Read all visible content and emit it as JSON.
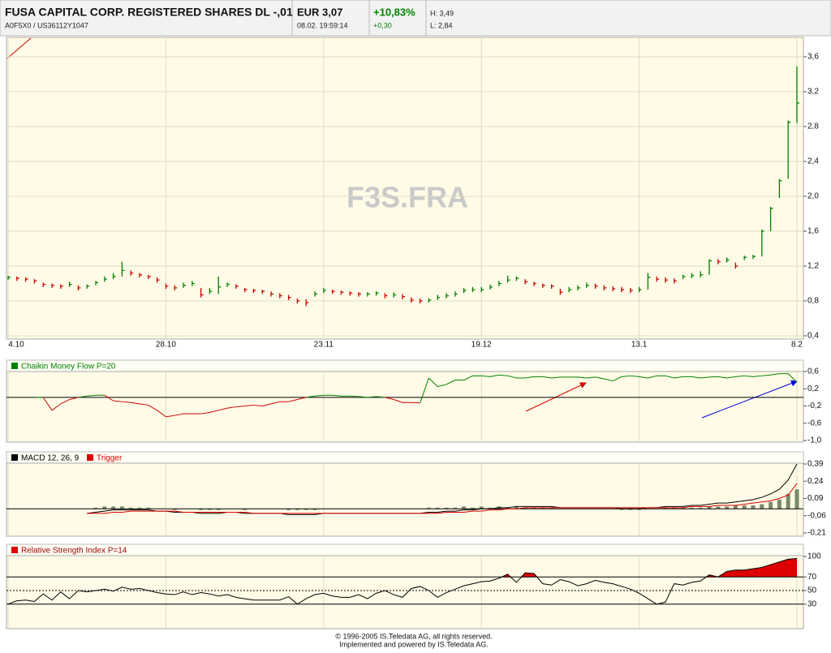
{
  "header": {
    "title": "FUSA CAPITAL CORP. REGISTERED SHARES DL -,01",
    "codes": "A0F5X0  /  US36112Y1047",
    "price": "EUR 3,07",
    "time": "08.02. 19:59:14",
    "change_pct": "+10,83%",
    "change_abs": "+0,30",
    "high": "H: 3,49",
    "low": "L: 2,84"
  },
  "watermark": "F3S.FRA",
  "footer": [
    "© 1996-2005 IS.Teledata AG, all rights reserved.",
    "Implemented and powered by IS.Teledata AG."
  ],
  "chart_data": [
    {
      "type": "hlc",
      "categories": [
        "4.10",
        null,
        null,
        null,
        null,
        null,
        null,
        null,
        null,
        null,
        null,
        null,
        null,
        null,
        null,
        null,
        null,
        null,
        "28.10",
        null,
        null,
        null,
        null,
        null,
        null,
        null,
        null,
        null,
        null,
        null,
        null,
        null,
        null,
        null,
        null,
        null,
        "23.11",
        null,
        null,
        null,
        null,
        null,
        null,
        null,
        null,
        null,
        null,
        null,
        null,
        null,
        null,
        null,
        null,
        null,
        "19.12",
        null,
        null,
        null,
        null,
        null,
        null,
        null,
        null,
        null,
        null,
        null,
        null,
        null,
        null,
        null,
        null,
        null,
        "13.1",
        null,
        null,
        null,
        null,
        null,
        null,
        null,
        null,
        null,
        null,
        null,
        null,
        null,
        null,
        null,
        null,
        null,
        "8.2"
      ],
      "high": [
        1.09,
        1.08,
        1.07,
        1.05,
        1.01,
        1.0,
        0.99,
        1.02,
        0.98,
        0.99,
        1.03,
        1.08,
        1.12,
        1.25,
        1.15,
        1.12,
        1.1,
        1.07,
        1.0,
        0.98,
        1.01,
        1.03,
        0.95,
        0.95,
        1.08,
        1.01,
        0.99,
        0.95,
        0.94,
        0.93,
        0.91,
        0.89,
        0.87,
        0.83,
        0.82,
        0.91,
        0.95,
        0.93,
        0.92,
        0.91,
        0.9,
        0.9,
        0.91,
        0.89,
        0.9,
        0.88,
        0.84,
        0.83,
        0.83,
        0.87,
        0.89,
        0.91,
        0.95,
        0.96,
        0.96,
        0.99,
        1.03,
        1.09,
        1.08,
        1.05,
        1.02,
        1.0,
        0.99,
        0.94,
        0.96,
        0.98,
        1.01,
        1.0,
        0.98,
        0.97,
        0.96,
        0.95,
        0.96,
        1.12,
        1.08,
        1.07,
        1.06,
        1.1,
        1.12,
        1.14,
        1.28,
        1.28,
        1.3,
        1.24,
        1.32,
        1.33,
        1.62,
        1.88,
        2.2,
        2.87,
        3.49
      ],
      "low": [
        1.04,
        1.03,
        1.02,
        1.0,
        0.96,
        0.95,
        0.94,
        0.96,
        0.92,
        0.94,
        0.98,
        1.02,
        1.05,
        1.08,
        1.09,
        1.07,
        1.05,
        1.01,
        0.94,
        0.92,
        0.95,
        0.97,
        0.84,
        0.88,
        0.88,
        0.96,
        0.94,
        0.9,
        0.89,
        0.88,
        0.85,
        0.83,
        0.81,
        0.77,
        0.74,
        0.85,
        0.89,
        0.88,
        0.87,
        0.86,
        0.85,
        0.85,
        0.86,
        0.83,
        0.84,
        0.82,
        0.78,
        0.77,
        0.78,
        0.81,
        0.83,
        0.85,
        0.89,
        0.9,
        0.9,
        0.93,
        0.97,
        1.01,
        1.03,
        0.99,
        0.97,
        0.95,
        0.94,
        0.87,
        0.9,
        0.92,
        0.95,
        0.94,
        0.92,
        0.91,
        0.9,
        0.89,
        0.9,
        0.93,
        1.02,
        1.01,
        1.0,
        1.05,
        1.06,
        1.07,
        1.1,
        1.22,
        1.24,
        1.17,
        1.27,
        1.28,
        1.31,
        1.6,
        1.98,
        2.2,
        2.84
      ],
      "close": [
        1.07,
        1.06,
        1.05,
        1.03,
        0.99,
        0.98,
        0.97,
        0.99,
        0.95,
        0.97,
        1.01,
        1.05,
        1.08,
        1.15,
        1.12,
        1.1,
        1.08,
        1.04,
        0.97,
        0.95,
        0.98,
        1.0,
        0.87,
        0.91,
        0.96,
        0.99,
        0.97,
        0.93,
        0.92,
        0.91,
        0.88,
        0.86,
        0.84,
        0.8,
        0.78,
        0.88,
        0.92,
        0.91,
        0.9,
        0.89,
        0.88,
        0.88,
        0.89,
        0.86,
        0.87,
        0.85,
        0.81,
        0.8,
        0.81,
        0.84,
        0.86,
        0.88,
        0.92,
        0.93,
        0.93,
        0.96,
        1.0,
        1.04,
        1.06,
        1.02,
        1.0,
        0.98,
        0.97,
        0.9,
        0.93,
        0.95,
        0.98,
        0.97,
        0.95,
        0.94,
        0.93,
        0.92,
        0.93,
        1.07,
        1.05,
        1.04,
        1.03,
        1.08,
        1.09,
        1.1,
        1.26,
        1.25,
        1.27,
        1.2,
        1.3,
        1.31,
        1.6,
        1.86,
        2.18,
        2.85,
        3.07
      ],
      "up_color": "#008000",
      "down_color": "#cc0000",
      "ylim": [
        0.4,
        3.6
      ],
      "yticks": [
        {
          "value": 3.6,
          "label": "3,6"
        },
        {
          "value": 3.2,
          "label": "3,2"
        },
        {
          "value": 2.8,
          "label": "2,8"
        },
        {
          "value": 2.4,
          "label": "2,4"
        },
        {
          "value": 2.0,
          "label": "2,0"
        },
        {
          "value": 1.6,
          "label": "1,6"
        },
        {
          "value": 1.2,
          "label": "1,2"
        },
        {
          "value": 0.8,
          "label": "0,8"
        },
        {
          "value": 0.4,
          "label": "0,4"
        }
      ],
      "grid": true
    },
    {
      "type": "line",
      "title": "Chaikin Money Flow P=20",
      "values": [
        null,
        null,
        null,
        0,
        0,
        -0.3,
        -0.15,
        -0.05,
        0,
        0.03,
        0.05,
        0.05,
        -0.08,
        -0.1,
        -0.12,
        -0.15,
        -0.18,
        -0.3,
        -0.45,
        -0.42,
        -0.38,
        -0.38,
        -0.38,
        -0.35,
        -0.3,
        -0.25,
        -0.22,
        -0.2,
        -0.18,
        -0.2,
        -0.15,
        -0.1,
        -0.1,
        -0.05,
        0,
        0.03,
        0.05,
        0.05,
        0.03,
        0.03,
        0.02,
        0,
        0.02,
        0,
        -0.05,
        -0.12,
        -0.12,
        -0.13,
        0.45,
        0.25,
        0.3,
        0.4,
        0.4,
        0.5,
        0.5,
        0.48,
        0.52,
        0.5,
        0.45,
        0.45,
        0.48,
        0.48,
        0.45,
        0.47,
        0.47,
        0.47,
        0.45,
        0.47,
        0.43,
        0.38,
        0.48,
        0.5,
        0.48,
        0.45,
        0.5,
        0.5,
        0.45,
        0.48,
        0.48,
        0.45,
        0.47,
        0.48,
        0.45,
        0.48,
        0.5,
        0.48,
        0.5,
        0.52,
        0.55,
        0.55,
        0.35
      ],
      "positive_color": "#008000",
      "negative_color": "#cc0000",
      "baseline": 0,
      "ylim": [
        -1.0,
        0.6
      ],
      "yticks": [
        {
          "value": 0.6,
          "label": "0,6"
        },
        {
          "value": 0.2,
          "label": "0,2"
        },
        {
          "value": -0.2,
          "label": "-0,2"
        },
        {
          "value": -0.6,
          "label": "-0,6"
        },
        {
          "value": -1.0,
          "label": "-1,0"
        }
      ]
    },
    {
      "type": "macd",
      "series": [
        {
          "name": "MACD 12, 26, 9",
          "color": "#000000",
          "values": [
            null,
            null,
            null,
            null,
            null,
            null,
            null,
            null,
            null,
            -0.04,
            -0.03,
            -0.02,
            -0.01,
            -0.01,
            -0.01,
            -0.01,
            -0.01,
            -0.02,
            -0.02,
            -0.03,
            -0.03,
            -0.03,
            -0.04,
            -0.04,
            -0.04,
            -0.03,
            -0.03,
            -0.04,
            -0.04,
            -0.04,
            -0.04,
            -0.04,
            -0.05,
            -0.05,
            -0.05,
            -0.05,
            -0.04,
            -0.04,
            -0.04,
            -0.04,
            -0.04,
            -0.04,
            -0.04,
            -0.04,
            -0.04,
            -0.04,
            -0.04,
            -0.04,
            -0.03,
            -0.03,
            -0.02,
            -0.02,
            -0.01,
            -0.01,
            0,
            0,
            0.01,
            0.01,
            0.02,
            0.02,
            0.02,
            0.02,
            0.02,
            0.01,
            0.01,
            0.01,
            0.01,
            0.01,
            0.01,
            0.01,
            0,
            0,
            0,
            0.01,
            0.01,
            0.02,
            0.02,
            0.02,
            0.03,
            0.03,
            0.04,
            0.05,
            0.05,
            0.06,
            0.07,
            0.08,
            0.1,
            0.13,
            0.17,
            0.25,
            0.39
          ]
        },
        {
          "name": "Trigger",
          "color": "#dd0000",
          "values": [
            null,
            null,
            null,
            null,
            null,
            null,
            null,
            null,
            null,
            -0.04,
            -0.04,
            -0.04,
            -0.03,
            -0.03,
            -0.02,
            -0.02,
            -0.02,
            -0.02,
            -0.02,
            -0.02,
            -0.03,
            -0.03,
            -0.03,
            -0.03,
            -0.03,
            -0.03,
            -0.03,
            -0.03,
            -0.04,
            -0.04,
            -0.04,
            -0.04,
            -0.04,
            -0.04,
            -0.04,
            -0.04,
            -0.04,
            -0.04,
            -0.04,
            -0.04,
            -0.04,
            -0.04,
            -0.04,
            -0.04,
            -0.04,
            -0.04,
            -0.04,
            -0.04,
            -0.04,
            -0.04,
            -0.03,
            -0.03,
            -0.03,
            -0.02,
            -0.02,
            -0.01,
            -0.01,
            0,
            0,
            0.01,
            0.01,
            0.01,
            0.01,
            0.01,
            0.01,
            0.01,
            0.01,
            0.01,
            0.01,
            0.01,
            0.01,
            0.01,
            0.01,
            0.01,
            0.01,
            0.01,
            0.01,
            0.01,
            0.02,
            0.02,
            0.02,
            0.03,
            0.03,
            0.03,
            0.04,
            0.05,
            0.06,
            0.07,
            0.09,
            0.12,
            0.22
          ]
        },
        {
          "color": "#7a8a6a",
          "kind": "bar",
          "values": [
            null,
            null,
            null,
            null,
            null,
            null,
            null,
            null,
            null,
            0,
            0.01,
            0.02,
            0.02,
            0.02,
            0.01,
            0.01,
            0.01,
            0,
            0,
            -0.01,
            0,
            0,
            -0.01,
            -0.01,
            -0.01,
            0,
            0,
            -0.01,
            0,
            0,
            0,
            0,
            -0.01,
            -0.01,
            -0.01,
            -0.01,
            0,
            0,
            0,
            0,
            0,
            0,
            0,
            0,
            0,
            0,
            0,
            0,
            0.01,
            0.01,
            0.01,
            0.01,
            0.02,
            0.01,
            0.02,
            0.01,
            0.02,
            0.01,
            0.02,
            0.01,
            0.01,
            0.01,
            0.01,
            0,
            0,
            0,
            0,
            0,
            0,
            0,
            -0.01,
            -0.01,
            -0.01,
            0,
            0,
            0.01,
            0.01,
            0.01,
            0.01,
            0.01,
            0.02,
            0.02,
            0.02,
            0.03,
            0.03,
            0.03,
            0.04,
            0.06,
            0.08,
            0.13,
            0.17
          ]
        }
      ],
      "baseline": 0,
      "ylim": [
        -0.21,
        0.39
      ],
      "yticks": [
        {
          "value": 0.39,
          "label": "0,39"
        },
        {
          "value": 0.24,
          "label": "0,24"
        },
        {
          "value": 0.09,
          "label": "0,09"
        },
        {
          "value": -0.06,
          "label": "-0,06"
        },
        {
          "value": -0.21,
          "label": "-0,21"
        }
      ]
    },
    {
      "type": "rsi",
      "title": "Relative Strength Index P=14",
      "values": [
        30,
        35,
        36,
        34,
        45,
        36,
        48,
        38,
        50,
        48,
        50,
        52,
        49,
        55,
        52,
        53,
        50,
        47,
        45,
        44,
        48,
        44,
        47,
        45,
        42,
        44,
        40,
        38,
        36,
        36,
        36,
        36,
        41,
        30,
        38,
        44,
        46,
        42,
        40,
        40,
        44,
        38,
        46,
        50,
        44,
        40,
        53,
        56,
        50,
        40,
        47,
        52,
        57,
        60,
        63,
        64,
        68,
        74,
        62,
        76,
        75,
        60,
        58,
        66,
        63,
        57,
        60,
        65,
        62,
        60,
        56,
        52,
        46,
        38,
        30,
        33,
        60,
        58,
        62,
        64,
        73,
        70,
        78,
        80,
        80,
        82,
        84,
        88,
        92,
        96,
        97
      ],
      "color": "#000000",
      "fill_color": "#dd0000",
      "title_color": "#990000",
      "levels": [
        {
          "value": 70,
          "dashed": false
        },
        {
          "value": 50,
          "dashed": true
        },
        {
          "value": 30,
          "dashed": false
        }
      ],
      "ylim": [
        0,
        100
      ],
      "yticks": [
        100,
        70,
        50,
        30
      ]
    }
  ]
}
